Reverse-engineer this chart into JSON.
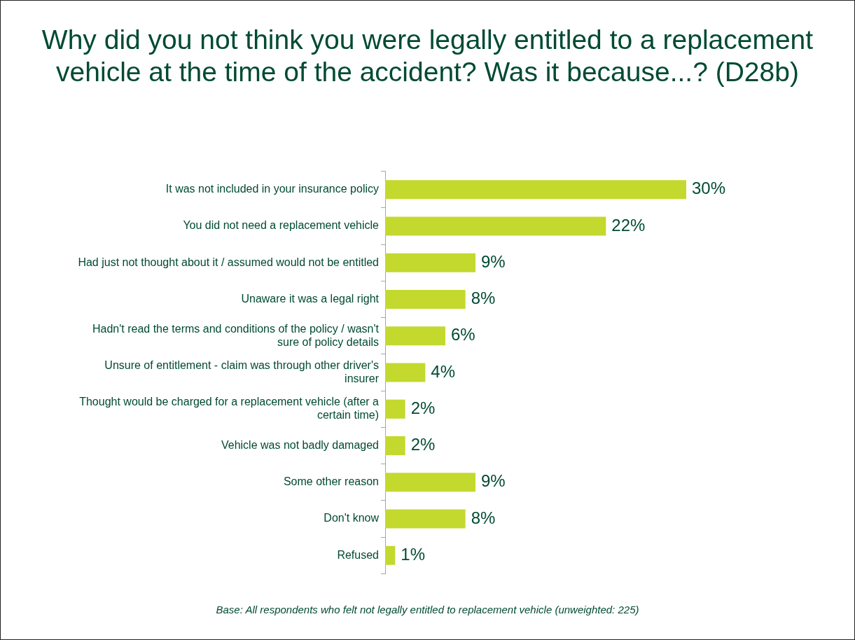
{
  "chart_data": {
    "type": "bar",
    "orientation": "horizontal",
    "title": "Why did you not think you were legally entitled to a replacement vehicle at the time of the accident? Was it because...? (D28b)",
    "categories": [
      "It was not included in your insurance policy",
      "You did not need a replacement vehicle",
      "Had just not thought about it / assumed would not be entitled",
      "Unaware it was a legal right",
      "Hadn't read the terms and conditions of the policy / wasn't sure of policy details",
      "Unsure of entitlement - claim was through other driver's insurer",
      "Thought would be charged for a replacement vehicle (after a certain time)",
      "Vehicle was not badly damaged",
      "Some other reason",
      "Don't know",
      "Refused"
    ],
    "values": [
      30,
      22,
      9,
      8,
      6,
      4,
      2,
      2,
      9,
      8,
      1
    ],
    "value_labels": [
      "30%",
      "22%",
      "9%",
      "8%",
      "6%",
      "4%",
      "2%",
      "2%",
      "9%",
      "8%",
      "1%"
    ],
    "color": "#c3d92e",
    "tick_labels": "y",
    "grid": false,
    "legend": false,
    "annotations": [
      "Base: All respondents who felt not legally entitled to replacement vehicle (unweighted: 225)"
    ]
  }
}
